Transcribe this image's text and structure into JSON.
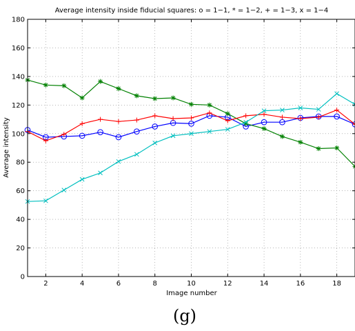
{
  "chart_data": {
    "type": "line",
    "title": "Average intensity inside fiducial squares: o = 1−1, * = 1−2, + = 1−3, x = 1−4",
    "xlabel": "Image number",
    "ylabel": "Average intensity",
    "caption": "(g)",
    "xlim": [
      1,
      19
    ],
    "ylim": [
      0,
      180
    ],
    "xticks": [
      2,
      4,
      6,
      8,
      10,
      12,
      14,
      16,
      18
    ],
    "yticks": [
      0,
      20,
      40,
      60,
      80,
      100,
      120,
      140,
      160,
      180
    ],
    "grid": true,
    "x": [
      1,
      2,
      3,
      4,
      5,
      6,
      7,
      8,
      9,
      10,
      11,
      12,
      13,
      14,
      15,
      16,
      17,
      18,
      19
    ],
    "series": [
      {
        "marker": "circle",
        "color": "#0000ff",
        "values": [
          102.5,
          97.5,
          98,
          98.5,
          101,
          97.5,
          101.5,
          105,
          107.5,
          107,
          112.5,
          111.5,
          105,
          108,
          108,
          111,
          112,
          112,
          106.5
        ]
      },
      {
        "marker": "star",
        "color": "#008000",
        "values": [
          137.5,
          134,
          133.5,
          125,
          136.5,
          131.5,
          126.5,
          124.5,
          125,
          120.5,
          120,
          114,
          107,
          103.5,
          98,
          94,
          89.5,
          90,
          77
        ]
      },
      {
        "marker": "plus",
        "color": "#ff0000",
        "values": [
          101.5,
          95,
          99.5,
          107,
          110,
          108.5,
          109.5,
          112.5,
          110.5,
          111,
          114.5,
          109,
          112.5,
          113.5,
          111.5,
          110.5,
          111.5,
          116.5,
          106.5
        ]
      },
      {
        "marker": "x",
        "color": "#00bfbf",
        "values": [
          52.5,
          53,
          60.5,
          68,
          72.5,
          80.5,
          85.5,
          93.5,
          98.5,
          100,
          101.5,
          103,
          108,
          116,
          116.5,
          118,
          117,
          128,
          120.5
        ]
      }
    ]
  }
}
